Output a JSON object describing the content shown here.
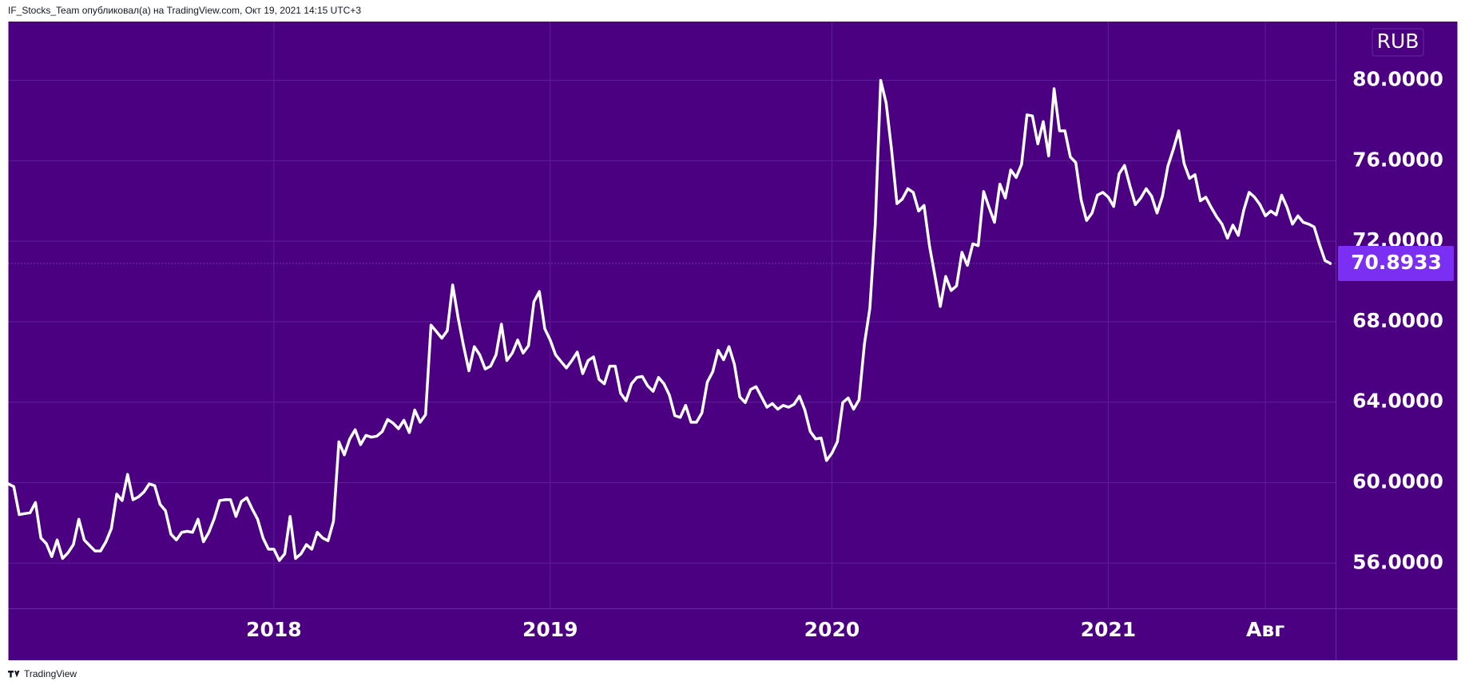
{
  "header": "IF_Stocks_Team опубликовал(а) на TradingView.com, Окт 19, 2021 14:15 UTC+3",
  "footer": "TradingView",
  "chart_data": {
    "type": "line",
    "currency": "RUB",
    "color": "#ffffff",
    "grid": true,
    "ylim": [
      53.73,
      82.92
    ],
    "yticks": [
      {
        "value": 56,
        "label": "56.0000"
      },
      {
        "value": 60,
        "label": "60.0000"
      },
      {
        "value": 64,
        "label": "64.0000"
      },
      {
        "value": 68,
        "label": "68.0000"
      },
      {
        "value": 72,
        "label": "72.0000"
      },
      {
        "value": 76,
        "label": "76.0000"
      },
      {
        "value": 80,
        "label": "80.0000"
      }
    ],
    "categories": [
      null,
      null,
      null,
      null,
      null,
      null,
      null,
      null,
      null,
      null,
      null,
      null,
      null,
      null,
      null,
      null,
      null,
      null,
      null,
      null,
      null,
      null,
      null,
      null,
      null,
      null,
      null,
      null,
      null,
      null,
      null,
      null,
      null,
      null,
      null,
      null,
      null,
      null,
      null,
      null,
      null,
      null,
      null,
      null,
      null,
      null,
      null,
      null,
      null,
      "2018",
      null,
      null,
      null,
      null,
      null,
      null,
      null,
      null,
      null,
      null,
      null,
      null,
      null,
      null,
      null,
      null,
      null,
      null,
      null,
      null,
      null,
      null,
      null,
      null,
      null,
      null,
      null,
      null,
      null,
      null,
      null,
      null,
      null,
      null,
      null,
      null,
      null,
      null,
      null,
      null,
      null,
      null,
      null,
      null,
      null,
      null,
      null,
      null,
      null,
      null,
      "2019",
      null,
      null,
      null,
      null,
      null,
      null,
      null,
      null,
      null,
      null,
      null,
      null,
      null,
      null,
      null,
      null,
      null,
      null,
      null,
      null,
      null,
      null,
      null,
      null,
      null,
      null,
      null,
      null,
      null,
      null,
      null,
      null,
      null,
      null,
      null,
      null,
      null,
      null,
      null,
      null,
      null,
      null,
      null,
      null,
      null,
      null,
      null,
      null,
      null,
      null,
      null,
      "2020",
      null,
      null,
      null,
      null,
      null,
      null,
      null,
      null,
      null,
      null,
      null,
      null,
      null,
      null,
      null,
      null,
      null,
      null,
      null,
      null,
      null,
      null,
      null,
      null,
      null,
      null,
      null,
      null,
      null,
      null,
      null,
      null,
      null,
      null,
      null,
      null,
      null,
      null,
      null,
      null,
      null,
      null,
      null,
      null,
      null,
      null,
      null,
      null,
      null,
      null,
      "2021",
      null,
      null,
      null,
      null,
      null,
      null,
      null,
      null,
      null,
      null,
      null,
      null,
      null,
      null,
      null,
      null,
      null,
      null,
      null,
      null,
      null,
      null,
      null,
      null,
      null,
      null,
      null,
      null,
      "Авг",
      null,
      null,
      null,
      null,
      null,
      null,
      null,
      null,
      null,
      null,
      null,
      null
    ],
    "values": [
      59.94,
      59.8,
      58.41,
      58.46,
      58.5,
      59.01,
      57.25,
      56.97,
      56.32,
      57.15,
      56.23,
      56.51,
      56.92,
      58.18,
      57.15,
      56.87,
      56.6,
      56.6,
      57.06,
      57.71,
      59.43,
      59.11,
      60.41,
      59.15,
      59.29,
      59.53,
      59.94,
      59.85,
      58.92,
      58.6,
      57.44,
      57.15,
      57.53,
      57.58,
      57.53,
      58.18,
      57.06,
      57.53,
      58.22,
      59.11,
      59.15,
      59.15,
      58.32,
      59.06,
      59.25,
      58.69,
      58.18,
      57.25,
      56.69,
      56.69,
      56.13,
      56.46,
      58.32,
      56.23,
      56.46,
      56.92,
      56.69,
      57.53,
      57.25,
      57.11,
      58.08,
      62.03,
      61.38,
      62.17,
      62.63,
      61.89,
      62.35,
      62.26,
      62.31,
      62.54,
      63.14,
      62.96,
      62.68,
      63.1,
      62.49,
      63.61,
      63.0,
      63.38,
      67.83,
      67.51,
      67.18,
      67.55,
      69.83,
      68.2,
      66.81,
      65.56,
      66.76,
      66.35,
      65.65,
      65.79,
      66.35,
      67.88,
      66.07,
      66.44,
      67.09,
      66.44,
      66.81,
      68.99,
      69.5,
      67.65,
      67.09,
      66.35,
      66.02,
      65.7,
      66.07,
      66.49,
      65.42,
      66.07,
      66.25,
      65.14,
      64.91,
      65.79,
      65.79,
      64.44,
      64.07,
      64.91,
      65.23,
      65.28,
      64.81,
      64.54,
      65.23,
      64.91,
      64.35,
      63.33,
      63.24,
      63.84,
      63.0,
      63.0,
      63.47,
      65.0,
      65.51,
      66.58,
      66.11,
      66.76,
      65.88,
      64.26,
      63.98,
      64.63,
      64.77,
      64.26,
      63.75,
      63.93,
      63.65,
      63.84,
      63.75,
      63.89,
      64.3,
      63.61,
      62.54,
      62.17,
      62.22,
      61.1,
      61.47,
      62.03,
      63.98,
      64.21,
      63.65,
      64.12,
      66.9,
      68.67,
      72.85,
      80.0,
      78.88,
      76.56,
      73.87,
      74.1,
      74.61,
      74.43,
      73.5,
      73.78,
      71.78,
      70.29,
      68.76,
      70.25,
      69.55,
      69.78,
      71.45,
      70.8,
      71.87,
      71.78,
      74.47,
      73.68,
      72.94,
      74.84,
      74.15,
      75.54,
      75.17,
      75.82,
      78.28,
      78.23,
      76.84,
      77.95,
      76.24,
      79.58,
      77.49,
      77.49,
      76.19,
      75.91,
      74.05,
      73.03,
      73.4,
      74.29,
      74.43,
      74.19,
      73.73,
      75.35,
      75.77,
      74.75,
      73.82,
      74.15,
      74.61,
      74.24,
      73.4,
      74.24,
      75.73,
      76.56,
      77.49,
      75.86,
      75.12,
      75.31,
      74.01,
      74.19,
      73.68,
      73.22,
      72.85,
      72.15,
      72.8,
      72.29,
      73.54,
      74.43,
      74.19,
      73.82,
      73.26,
      73.5,
      73.31,
      74.29,
      73.68,
      72.85,
      73.26,
      72.94,
      72.85,
      72.71,
      71.83,
      71.04,
      70.8933
    ]
  }
}
